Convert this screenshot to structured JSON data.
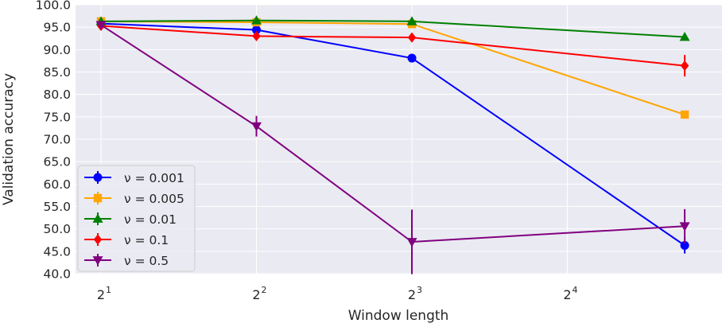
{
  "chart_data": {
    "type": "line",
    "title": "",
    "xlabel": "Window length",
    "ylabel": "Validation accuracy",
    "x_scale": "log2",
    "x": [
      2,
      4,
      8,
      27
    ],
    "xticks": [
      2,
      4,
      8,
      16
    ],
    "xtick_labels": [
      "2",
      "2",
      "2",
      "2"
    ],
    "xtick_exponents": [
      "1",
      "2",
      "3",
      "4"
    ],
    "ylim": [
      40.0,
      100.0
    ],
    "yticks": [
      "40.0",
      "45.0",
      "50.0",
      "55.0",
      "60.0",
      "65.0",
      "70.0",
      "75.0",
      "80.0",
      "85.0",
      "90.0",
      "95.0",
      "100.0"
    ],
    "grid": true,
    "legend_position": "lower-left",
    "series": [
      {
        "name": "ν = 0.001",
        "color": "#0000ff",
        "marker": "circle",
        "values": [
          95.8,
          94.4,
          88.1,
          46.3
        ],
        "errors": [
          0.4,
          0.6,
          0.6,
          1.8
        ]
      },
      {
        "name": "ν = 0.005",
        "color": "#ffa500",
        "marker": "square",
        "values": [
          96.3,
          96.1,
          95.7,
          75.5
        ],
        "errors": [
          0.4,
          0.4,
          0.4,
          0.4
        ]
      },
      {
        "name": "ν = 0.01",
        "color": "#008000",
        "marker": "triangle-up",
        "values": [
          96.3,
          96.5,
          96.3,
          92.8
        ],
        "errors": [
          0.3,
          0.4,
          0.3,
          0.8
        ]
      },
      {
        "name": "ν = 0.1",
        "color": "#ff0000",
        "marker": "diamond",
        "values": [
          95.3,
          93.0,
          92.7,
          86.4
        ],
        "errors": [
          0.4,
          0.4,
          0.4,
          2.4
        ]
      },
      {
        "name": "ν = 0.5",
        "color": "#800080",
        "marker": "triangle-down",
        "values": [
          95.5,
          72.9,
          47.1,
          50.6
        ],
        "errors": [
          0.5,
          2.3,
          7.2,
          3.8
        ]
      }
    ]
  }
}
